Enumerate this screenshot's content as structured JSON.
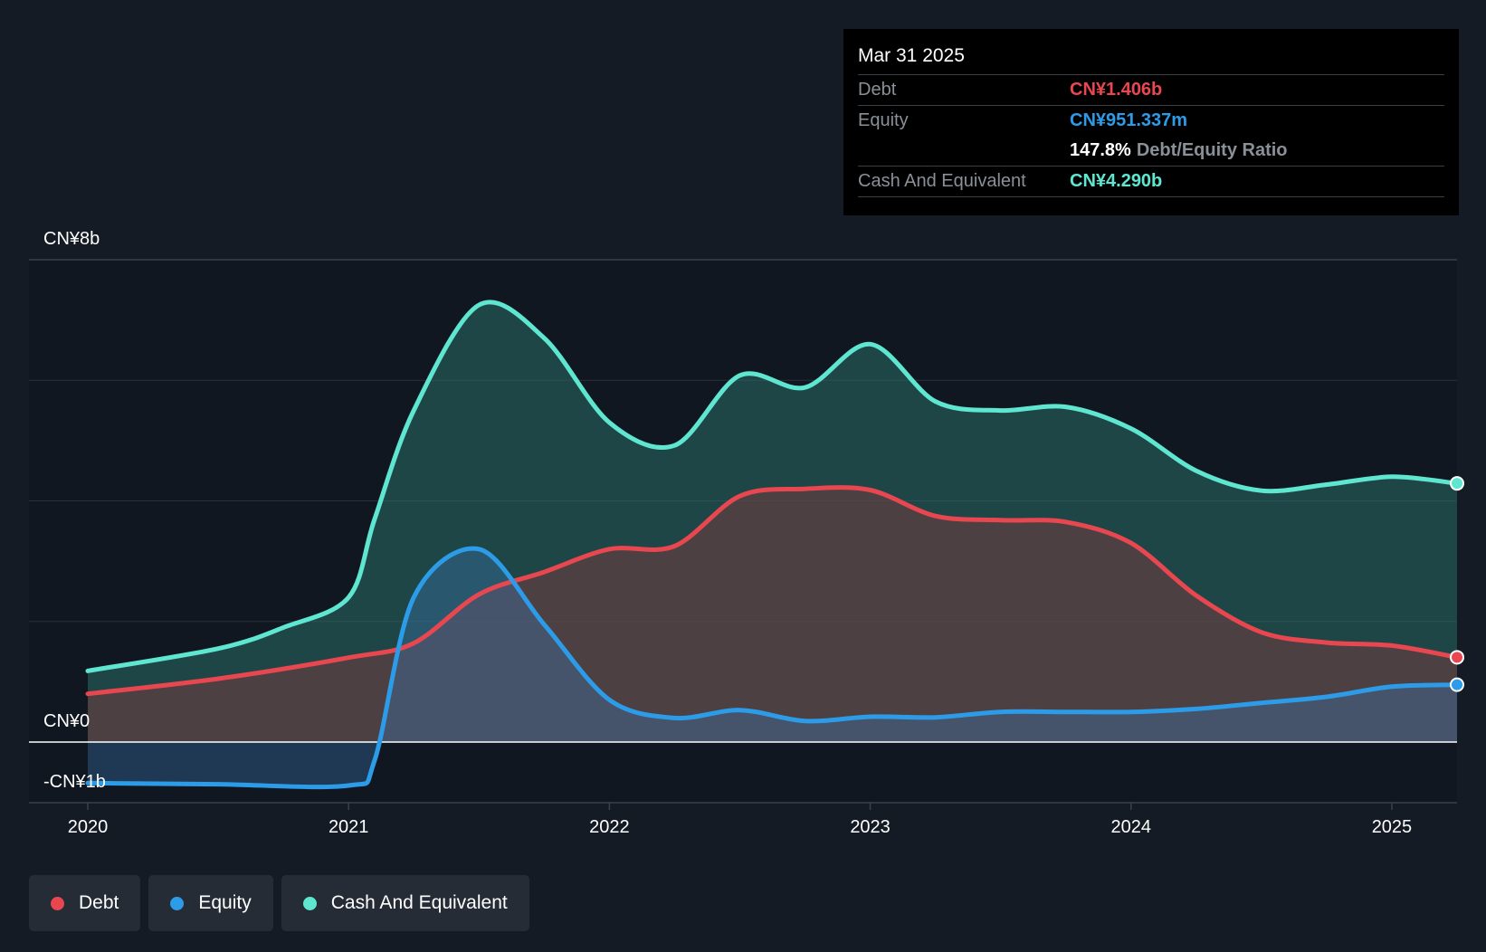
{
  "chart_data": {
    "type": "area",
    "currency": "CN¥",
    "y_axis": {
      "top_label": "CN¥8b",
      "zero_label": "CN¥0",
      "bottom_label": "-CN¥1b",
      "min": -1,
      "max": 8,
      "gridlines": [
        2,
        4,
        6
      ]
    },
    "x_axis": {
      "ticks": [
        "2020",
        "2021",
        "2022",
        "2023",
        "2024",
        "2025"
      ],
      "min": 2019.78,
      "max": 2025.25
    },
    "series": [
      {
        "name": "Cash And Equivalent",
        "key": "cash",
        "color": "#5ee6d1",
        "points": [
          [
            2020.0,
            1.18
          ],
          [
            2020.5,
            1.55
          ],
          [
            2020.75,
            1.9
          ],
          [
            2021.0,
            2.4
          ],
          [
            2021.1,
            3.7
          ],
          [
            2021.25,
            5.5
          ],
          [
            2021.5,
            7.25
          ],
          [
            2021.75,
            6.7
          ],
          [
            2022.0,
            5.3
          ],
          [
            2022.25,
            4.92
          ],
          [
            2022.5,
            6.08
          ],
          [
            2022.75,
            5.88
          ],
          [
            2023.0,
            6.6
          ],
          [
            2023.25,
            5.65
          ],
          [
            2023.5,
            5.5
          ],
          [
            2023.75,
            5.56
          ],
          [
            2024.0,
            5.2
          ],
          [
            2024.25,
            4.5
          ],
          [
            2024.5,
            4.17
          ],
          [
            2024.75,
            4.27
          ],
          [
            2025.0,
            4.4
          ],
          [
            2025.25,
            4.29
          ]
        ]
      },
      {
        "name": "Debt",
        "key": "debt",
        "color": "#e8474f",
        "points": [
          [
            2020.0,
            0.8
          ],
          [
            2020.5,
            1.05
          ],
          [
            2021.0,
            1.4
          ],
          [
            2021.25,
            1.64
          ],
          [
            2021.5,
            2.45
          ],
          [
            2021.75,
            2.82
          ],
          [
            2022.0,
            3.2
          ],
          [
            2022.25,
            3.25
          ],
          [
            2022.5,
            4.08
          ],
          [
            2022.75,
            4.2
          ],
          [
            2023.0,
            4.18
          ],
          [
            2023.25,
            3.75
          ],
          [
            2023.5,
            3.68
          ],
          [
            2023.75,
            3.65
          ],
          [
            2024.0,
            3.3
          ],
          [
            2024.25,
            2.43
          ],
          [
            2024.5,
            1.82
          ],
          [
            2024.75,
            1.65
          ],
          [
            2025.0,
            1.6
          ],
          [
            2025.25,
            1.406
          ]
        ]
      },
      {
        "name": "Equity",
        "key": "equity",
        "color": "#2d9ce8",
        "points": [
          [
            2020.0,
            -0.68
          ],
          [
            2020.5,
            -0.7
          ],
          [
            2021.0,
            -0.72
          ],
          [
            2021.1,
            -0.3
          ],
          [
            2021.25,
            2.4
          ],
          [
            2021.5,
            3.2
          ],
          [
            2021.75,
            1.95
          ],
          [
            2022.0,
            0.7
          ],
          [
            2022.25,
            0.4
          ],
          [
            2022.5,
            0.53
          ],
          [
            2022.75,
            0.35
          ],
          [
            2023.0,
            0.42
          ],
          [
            2023.25,
            0.41
          ],
          [
            2023.5,
            0.5
          ],
          [
            2023.75,
            0.5
          ],
          [
            2024.0,
            0.5
          ],
          [
            2024.25,
            0.55
          ],
          [
            2024.5,
            0.65
          ],
          [
            2024.75,
            0.75
          ],
          [
            2025.0,
            0.92
          ],
          [
            2025.25,
            0.951
          ]
        ]
      }
    ]
  },
  "tooltip": {
    "date": "Mar 31 2025",
    "debt_label": "Debt",
    "debt_value": "CN¥1.406b",
    "equity_label": "Equity",
    "equity_value": "CN¥951.337m",
    "ratio_value": "147.8%",
    "ratio_label": "Debt/Equity Ratio",
    "cash_label": "Cash And Equivalent",
    "cash_value": "CN¥4.290b"
  },
  "legend": {
    "debt": "Debt",
    "equity": "Equity",
    "cash": "Cash And Equivalent"
  },
  "colors": {
    "debt": "#e8474f",
    "equity": "#2d9ce8",
    "cash": "#5ee6d1",
    "background": "#151b24"
  }
}
